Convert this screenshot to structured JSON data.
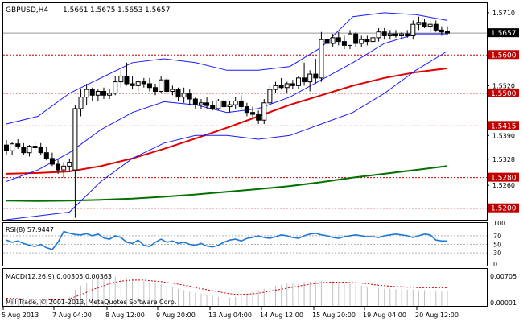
{
  "chart_data": {
    "type": "candlestick",
    "symbol_header": "GBPUSD,H4",
    "ohlc_header": [
      "1.5661",
      "1.5675",
      "1.5653",
      "1.5657"
    ],
    "copyright": "Mill Trade, © 2001-2013, MetaQuotes Software Corp.",
    "price_range": [
      1.517,
      1.5735
    ],
    "price_ticks": [
      "1.5710",
      "1.5657",
      "1.5600",
      "1.5520",
      "1.5500",
      "1.5415",
      "1.5390",
      "1.5328",
      "1.5280",
      "1.5260",
      "1.5200"
    ],
    "current_price": "1.5657",
    "horizontal_levels": [
      "1.5600",
      "1.5500",
      "1.5415",
      "1.5280",
      "1.5200"
    ],
    "x_labels": [
      "5 Aug 2013",
      "7 Aug 04:00",
      "8 Aug 12:00",
      "9 Aug 20:00",
      "13 Aug 04:00",
      "14 Aug 12:00",
      "15 Aug 20:00",
      "19 Aug 04:00",
      "20 Aug 12:00"
    ],
    "candles": [
      [
        1.5365,
        1.5378,
        1.5338,
        1.535
      ],
      [
        1.535,
        1.5372,
        1.534,
        1.5368
      ],
      [
        1.5368,
        1.538,
        1.5355,
        1.536
      ],
      [
        1.536,
        1.537,
        1.534,
        1.5345
      ],
      [
        1.5345,
        1.5365,
        1.5335,
        1.5362
      ],
      [
        1.5362,
        1.5375,
        1.535,
        1.5358
      ],
      [
        1.5358,
        1.537,
        1.534,
        1.5345
      ],
      [
        1.5345,
        1.536,
        1.5325,
        1.533
      ],
      [
        1.533,
        1.5345,
        1.531,
        1.5315
      ],
      [
        1.5315,
        1.533,
        1.529,
        1.53
      ],
      [
        1.53,
        1.532,
        1.528,
        1.531
      ],
      [
        1.531,
        1.533,
        1.5295,
        1.532
      ],
      [
        1.53,
        1.547,
        1.5175,
        1.546
      ],
      [
        1.546,
        1.551,
        1.544,
        1.549
      ],
      [
        1.549,
        1.5525,
        1.547,
        1.551
      ],
      [
        1.551,
        1.5515,
        1.548,
        1.5495
      ],
      [
        1.5495,
        1.551,
        1.548,
        1.5505
      ],
      [
        1.5505,
        1.5515,
        1.5485,
        1.5495
      ],
      [
        1.5495,
        1.551,
        1.5485,
        1.55
      ],
      [
        1.55,
        1.5545,
        1.5495,
        1.553
      ],
      [
        1.553,
        1.556,
        1.5515,
        1.5545
      ],
      [
        1.5545,
        1.558,
        1.552,
        1.5525
      ],
      [
        1.5525,
        1.5545,
        1.551,
        1.552
      ],
      [
        1.552,
        1.5535,
        1.5505,
        1.553
      ],
      [
        1.553,
        1.554,
        1.5515,
        1.5525
      ],
      [
        1.5525,
        1.554,
        1.5505,
        1.5515
      ],
      [
        1.5515,
        1.5525,
        1.5495,
        1.5505
      ],
      [
        1.5505,
        1.5545,
        1.55,
        1.5535
      ],
      [
        1.5535,
        1.554,
        1.55,
        1.5505
      ],
      [
        1.5505,
        1.552,
        1.5495,
        1.551
      ],
      [
        1.551,
        1.5515,
        1.548,
        1.549
      ],
      [
        1.549,
        1.5515,
        1.5475,
        1.55
      ],
      [
        1.55,
        1.551,
        1.547,
        1.5485
      ],
      [
        1.5485,
        1.549,
        1.546,
        1.547
      ],
      [
        1.547,
        1.5485,
        1.546,
        1.5475
      ],
      [
        1.5475,
        1.549,
        1.546,
        1.5468
      ],
      [
        1.5468,
        1.548,
        1.5455,
        1.546
      ],
      [
        1.546,
        1.5485,
        1.5455,
        1.548
      ],
      [
        1.548,
        1.549,
        1.546,
        1.5465
      ],
      [
        1.5465,
        1.548,
        1.545,
        1.547
      ],
      [
        1.547,
        1.549,
        1.546,
        1.548
      ],
      [
        1.548,
        1.5495,
        1.546,
        1.5465
      ],
      [
        1.5465,
        1.5475,
        1.544,
        1.545
      ],
      [
        1.545,
        1.5465,
        1.5435,
        1.5445
      ],
      [
        1.5445,
        1.5455,
        1.542,
        1.543
      ],
      [
        1.543,
        1.5485,
        1.542,
        1.5475
      ],
      [
        1.5475,
        1.552,
        1.547,
        1.551
      ],
      [
        1.551,
        1.553,
        1.55,
        1.552
      ],
      [
        1.552,
        1.554,
        1.551,
        1.5515
      ],
      [
        1.5515,
        1.553,
        1.55,
        1.5525
      ],
      [
        1.5525,
        1.5535,
        1.551,
        1.552
      ],
      [
        1.552,
        1.5545,
        1.551,
        1.554
      ],
      [
        1.554,
        1.558,
        1.552,
        1.553
      ],
      [
        1.553,
        1.556,
        1.5505,
        1.555
      ],
      [
        1.555,
        1.559,
        1.5525,
        1.554
      ],
      [
        1.554,
        1.566,
        1.553,
        1.564
      ],
      [
        1.564,
        1.566,
        1.5615,
        1.563
      ],
      [
        1.563,
        1.5655,
        1.562,
        1.5645
      ],
      [
        1.5645,
        1.566,
        1.5625,
        1.5635
      ],
      [
        1.5635,
        1.565,
        1.5615,
        1.5625
      ],
      [
        1.5625,
        1.5665,
        1.5615,
        1.5655
      ],
      [
        1.5655,
        1.566,
        1.562,
        1.563
      ],
      [
        1.563,
        1.565,
        1.562,
        1.564
      ],
      [
        1.564,
        1.565,
        1.5625,
        1.5635
      ],
      [
        1.5635,
        1.566,
        1.562,
        1.5645
      ],
      [
        1.5645,
        1.567,
        1.5635,
        1.566
      ],
      [
        1.566,
        1.567,
        1.564,
        1.565
      ],
      [
        1.565,
        1.5665,
        1.564,
        1.5655
      ],
      [
        1.5655,
        1.5665,
        1.5645,
        1.565
      ],
      [
        1.565,
        1.566,
        1.564,
        1.5655
      ],
      [
        1.5655,
        1.5665,
        1.5645,
        1.565
      ],
      [
        1.565,
        1.569,
        1.564,
        1.568
      ],
      [
        1.568,
        1.57,
        1.5665,
        1.5685
      ],
      [
        1.5685,
        1.5695,
        1.567,
        1.5675
      ],
      [
        1.5675,
        1.569,
        1.566,
        1.568
      ],
      [
        1.568,
        1.569,
        1.566,
        1.5665
      ],
      [
        1.5665,
        1.5675,
        1.565,
        1.566
      ],
      [
        1.5661,
        1.5675,
        1.5653,
        1.5657
      ]
    ],
    "bollinger_upper": [
      1.542,
      1.544,
      1.55,
      1.554,
      1.558,
      1.559,
      1.558,
      1.556,
      1.556,
      1.557,
      1.562,
      1.57,
      1.571,
      1.5705,
      1.569
    ],
    "bollinger_middle": [
      1.527,
      1.53,
      1.5345,
      1.5405,
      1.545,
      1.5478,
      1.547,
      1.545,
      1.546,
      1.549,
      1.5535,
      1.558,
      1.563,
      1.5655,
      1.5655
    ],
    "bollinger_lower": [
      1.517,
      1.518,
      1.519,
      1.527,
      1.533,
      1.537,
      1.539,
      1.539,
      1.538,
      1.539,
      1.542,
      1.545,
      1.55,
      1.556,
      1.561
    ],
    "ma_red": [
      1.529,
      1.5292,
      1.5296,
      1.531,
      1.533,
      1.5355,
      1.5382,
      1.541,
      1.544,
      1.547,
      1.5495,
      1.552,
      1.554,
      1.5555,
      1.5565
    ],
    "ma_green": [
      1.522,
      1.5219,
      1.522,
      1.5222,
      1.5225,
      1.523,
      1.5236,
      1.5243,
      1.525,
      1.5258,
      1.5268,
      1.528,
      1.529,
      1.53,
      1.531
    ],
    "rsi_label": "RSI(8) 57.9447",
    "rsi_ticks": [
      "100",
      "70",
      "50",
      "30",
      "0"
    ],
    "rsi_values": [
      60,
      55,
      58,
      52,
      48,
      45,
      50,
      42,
      38,
      55,
      80,
      76,
      73,
      72,
      75,
      70,
      74,
      65,
      62,
      70,
      66,
      55,
      52,
      60,
      48,
      45,
      55,
      62,
      55,
      58,
      52,
      55,
      50,
      48,
      52,
      46,
      44,
      48,
      55,
      60,
      62,
      58,
      64,
      66,
      70,
      66,
      64,
      68,
      72,
      70,
      66,
      64,
      70,
      74,
      76,
      72,
      70,
      66,
      64,
      68,
      70,
      72,
      70,
      68,
      68,
      66,
      70,
      72,
      74,
      72,
      70,
      66,
      70,
      74,
      72,
      60,
      58,
      58
    ],
    "macd_label": "MACD(12,26,9) 0.00305 0.00363",
    "macd_ticks": [
      "0.00705",
      "0.00091"
    ],
    "macd_histogram": [
      0.0015,
      0.0014,
      0.0013,
      0.0012,
      0.0012,
      0.0013,
      0.0013,
      0.0012,
      0.0011,
      0.0012,
      0.0015,
      0.0018,
      0.0032,
      0.004,
      0.0046,
      0.0052,
      0.0055,
      0.0057,
      0.0059,
      0.0058,
      0.0056,
      0.0055,
      0.0053,
      0.0051,
      0.0049,
      0.0047,
      0.0045,
      0.0043,
      0.004,
      0.0037,
      0.0034,
      0.0031,
      0.0028,
      0.0026,
      0.0024,
      0.0022,
      0.002,
      0.0018,
      0.0016,
      0.0016,
      0.0018,
      0.0021,
      0.0024,
      0.0028,
      0.0031,
      0.0034,
      0.0037,
      0.004,
      0.0042,
      0.0044,
      0.0045,
      0.0046,
      0.0047,
      0.0048,
      0.0049,
      0.005,
      0.005,
      0.0049,
      0.0048,
      0.0046,
      0.0044,
      0.0042,
      0.004,
      0.0038,
      0.0036,
      0.0035,
      0.0034,
      0.0034,
      0.0033,
      0.0033,
      0.0032,
      0.0032,
      0.0031,
      0.0031,
      0.0031,
      0.003,
      0.003,
      0.003
    ],
    "macd_signal": [
      0.0015,
      0.0015,
      0.0014,
      0.0014,
      0.0013,
      0.0013,
      0.0013,
      0.0013,
      0.0012,
      0.0012,
      0.0013,
      0.0014,
      0.0018,
      0.0022,
      0.0027,
      0.0032,
      0.0036,
      0.004,
      0.0044,
      0.0047,
      0.0049,
      0.005,
      0.0051,
      0.0051,
      0.0051,
      0.005,
      0.0049,
      0.0048,
      0.0046,
      0.0045,
      0.0043,
      0.0041,
      0.0039,
      0.0036,
      0.0034,
      0.0032,
      0.003,
      0.0028,
      0.0026,
      0.0024,
      0.0023,
      0.0023,
      0.0023,
      0.0024,
      0.0025,
      0.0027,
      0.0029,
      0.0031,
      0.0033,
      0.0035,
      0.0037,
      0.0039,
      0.0041,
      0.0043,
      0.0044,
      0.0046,
      0.0047,
      0.0047,
      0.0047,
      0.0047,
      0.0046,
      0.0046,
      0.0045,
      0.0044,
      0.0042,
      0.0041,
      0.004,
      0.0039,
      0.0038,
      0.0038,
      0.0037,
      0.0037,
      0.0036,
      0.0036,
      0.0036,
      0.0036,
      0.0036,
      0.0036
    ],
    "colors": {
      "candle": "#000000",
      "bollinger": "#1a1aff",
      "ma_red": "#e00000",
      "ma_green": "#007000",
      "level_line": "#c00000",
      "level_label_bg": "#c00000",
      "current_label_bg": "#000000",
      "rsi": "#1e78d7",
      "macd_hist": "#c0c0c0",
      "macd_signal": "#d00000"
    }
  }
}
